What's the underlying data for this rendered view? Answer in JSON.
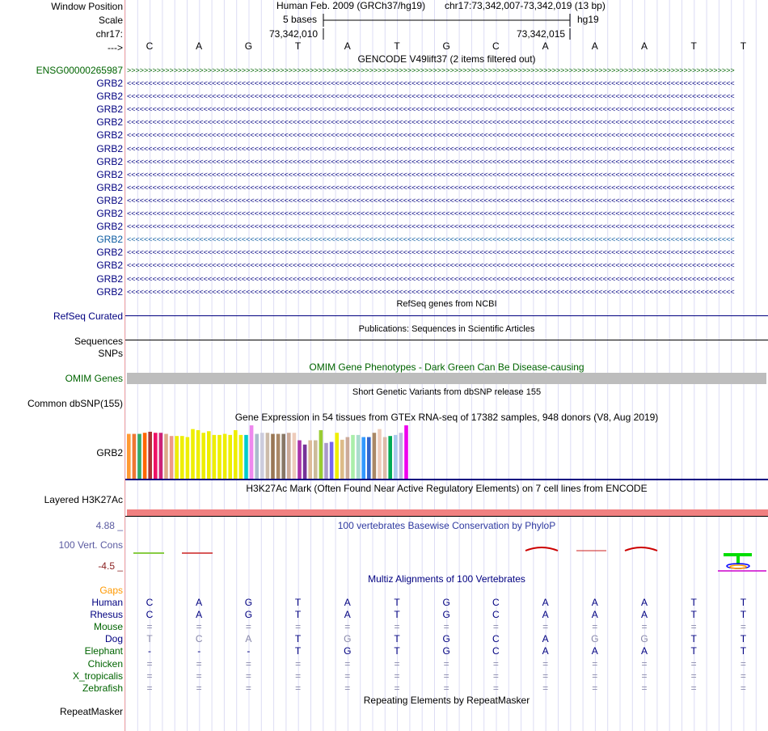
{
  "header": {
    "window_position_label": "Window Position",
    "scale_label": "Scale",
    "chrom_label": "chr17:",
    "strand_label": "--->",
    "title_left": "Human Feb. 2009 (GRCh37/hg19)",
    "title_right": "chr17:73,342,007-73,342,019 (13 bp)",
    "scale_text": "5 bases",
    "assembly": "hg19",
    "coord_left": "73,342,010",
    "coord_right": "73,342,015"
  },
  "bases": [
    "C",
    "A",
    "G",
    "T",
    "A",
    "T",
    "G",
    "C",
    "A",
    "A",
    "A",
    "T",
    "T"
  ],
  "gencode": {
    "title": "GENCODE V49lift37 (2 items filtered out)",
    "first_item": "ENSG00000265987",
    "items": [
      "GRB2",
      "GRB2",
      "GRB2",
      "GRB2",
      "GRB2",
      "GRB2",
      "GRB2",
      "GRB2",
      "GRB2",
      "GRB2",
      "GRB2",
      "GRB2",
      "GRB2",
      "GRB2",
      "GRB2",
      "GRB2",
      "GRB2"
    ],
    "highlighted_index": 12,
    "forward_arrows": ">>>>>>>>>>>>>>>>>>>>>>>>>>>>>>>>>>>>>>>>>>>>>>>>>>>>>>>>>>>>>>>>>>>>>>>>>>>>>>>>>>>>>>>>>>>>>>>>>>>>>>>>>>>>>>>>>>>>>>>>>>>>>>>>>>>>>>>>>>>>>>>",
    "reverse_arrows": "<<<<<<<<<<<<<<<<<<<<<<<<<<<<<<<<<<<<<<<<<<<<<<<<<<<<<<<<<<<<<<<<<<<<<<<<<<<<<<<<<<<<<<<<<<<<<<<<<<<<<<<<<<<<<<<<<<<<<<<<<<<<<<<<<<<<<<<<<<<<<<<"
  },
  "refseq": {
    "title": "RefSeq genes from NCBI",
    "label": "RefSeq Curated"
  },
  "publications": {
    "title": "Publications: Sequences in Scientific Articles",
    "label1": "Sequences",
    "label2": "SNPs"
  },
  "omim": {
    "title": "OMIM Gene Phenotypes - Dark Green Can Be Disease-causing",
    "label": "OMIM Genes"
  },
  "dbsnp": {
    "title": "Short Genetic Variants from dbSNP release 155",
    "label": "Common dbSNP(155)"
  },
  "gtex": {
    "title": "Gene Expression in 54 tissues from GTEx RNA-seq of 17382 samples, 948 donors (V8, Aug 2019)",
    "label": "GRB2",
    "bars": [
      {
        "c": "#ff9933",
        "v": 0.84
      },
      {
        "c": "#ee7733",
        "v": 0.84
      },
      {
        "c": "#33aa66",
        "v": 0.84
      },
      {
        "c": "#ff6600",
        "v": 0.86
      },
      {
        "c": "#aa3333",
        "v": 0.88
      },
      {
        "c": "#ee1166",
        "v": 0.86
      },
      {
        "c": "#cc2277",
        "v": 0.86
      },
      {
        "c": "#ddaa88",
        "v": 0.84
      },
      {
        "c": "#ee9988",
        "v": 0.8
      },
      {
        "c": "#eeee00",
        "v": 0.8
      },
      {
        "c": "#eeee00",
        "v": 0.8
      },
      {
        "c": "#eeee00",
        "v": 0.78
      },
      {
        "c": "#eeee00",
        "v": 0.93
      },
      {
        "c": "#eeee00",
        "v": 0.91
      },
      {
        "c": "#eeee00",
        "v": 0.86
      },
      {
        "c": "#eeee00",
        "v": 0.89
      },
      {
        "c": "#eeee00",
        "v": 0.82
      },
      {
        "c": "#eeee00",
        "v": 0.82
      },
      {
        "c": "#eeee00",
        "v": 0.84
      },
      {
        "c": "#eeee00",
        "v": 0.82
      },
      {
        "c": "#eeee00",
        "v": 0.91
      },
      {
        "c": "#eeee00",
        "v": 0.82
      },
      {
        "c": "#00cccc",
        "v": 0.82
      },
      {
        "c": "#ee88ee",
        "v": 1.0
      },
      {
        "c": "#aabbcc",
        "v": 0.84
      },
      {
        "c": "#ccccdd",
        "v": 0.86
      },
      {
        "c": "#ccbbaa",
        "v": 0.86
      },
      {
        "c": "#997755",
        "v": 0.84
      },
      {
        "c": "#aa8866",
        "v": 0.84
      },
      {
        "c": "#887766",
        "v": 0.84
      },
      {
        "c": "#ccaa99",
        "v": 0.86
      },
      {
        "c": "#eeccbb",
        "v": 0.86
      },
      {
        "c": "#aa33aa",
        "v": 0.72
      },
      {
        "c": "#773399",
        "v": 0.64
      },
      {
        "c": "#ddbb99",
        "v": 0.72
      },
      {
        "c": "#ccbb99",
        "v": 0.72
      },
      {
        "c": "#99cc33",
        "v": 0.91
      },
      {
        "c": "#aa99cc",
        "v": 0.67
      },
      {
        "c": "#7766ee",
        "v": 0.69
      },
      {
        "c": "#eeee00",
        "v": 0.86
      },
      {
        "c": "#ddbb88",
        "v": 0.73
      },
      {
        "c": "#ccaa99",
        "v": 0.78
      },
      {
        "c": "#aaeeaa",
        "v": 0.82
      },
      {
        "c": "#aaddcc",
        "v": 0.82
      },
      {
        "c": "#3399ff",
        "v": 0.78
      },
      {
        "c": "#3366cc",
        "v": 0.78
      },
      {
        "c": "#aa8866",
        "v": 0.86
      },
      {
        "c": "#eeccbb",
        "v": 0.93
      },
      {
        "c": "#ddbbaa",
        "v": 0.78
      },
      {
        "c": "#00aa55",
        "v": 0.8
      },
      {
        "c": "#aaccee",
        "v": 0.82
      },
      {
        "c": "#bbbbdd",
        "v": 0.86
      },
      {
        "c": "#ee00ee",
        "v": 1.0
      }
    ]
  },
  "h3k27ac": {
    "title": "H3K27Ac Mark (Often Found Near Active Regulatory Elements) on 7 cell lines from ENCODE",
    "label": "Layered H3K27Ac"
  },
  "phylop": {
    "title": "100 vertebrates Basewise Conservation by PhyloP",
    "label": "100 Vert. Cons",
    "max": "4.88 _",
    "min": "-4.5 _"
  },
  "multiz": {
    "title": "Multiz Alignments of 100 Vertebrates",
    "gaps_label": "Gaps",
    "species": [
      {
        "name": "Human",
        "color": "#000080",
        "seq": [
          "C",
          "A",
          "G",
          "T",
          "A",
          "T",
          "G",
          "C",
          "A",
          "A",
          "A",
          "T",
          "T"
        ],
        "base": "#000080"
      },
      {
        "name": "Rhesus",
        "color": "#000080",
        "seq": [
          "C",
          "A",
          "G",
          "T",
          "A",
          "T",
          "G",
          "C",
          "A",
          "A",
          "A",
          "T",
          "T"
        ],
        "base": "#000080"
      },
      {
        "name": "Mouse",
        "color": "#006400",
        "seq": [
          "=",
          "=",
          "=",
          "=",
          "=",
          "=",
          "=",
          "=",
          "=",
          "=",
          "=",
          "=",
          "="
        ],
        "base": "#8888aa"
      },
      {
        "name": "Dog",
        "color": "#000080",
        "seq": [
          "T",
          "C",
          "A",
          "T",
          "G",
          "T",
          "G",
          "C",
          "A",
          "G",
          "G",
          "T",
          "T"
        ],
        "base": "#000080"
      },
      {
        "name": "Elephant",
        "color": "#006400",
        "seq": [
          "-",
          "-",
          "-",
          "T",
          "G",
          "T",
          "G",
          "C",
          "A",
          "A",
          "A",
          "T",
          "T"
        ],
        "base": "#000080"
      },
      {
        "name": "Chicken",
        "color": "#006400",
        "seq": [
          "=",
          "=",
          "=",
          "=",
          "=",
          "=",
          "=",
          "=",
          "=",
          "=",
          "=",
          "=",
          "="
        ],
        "base": "#8888aa"
      },
      {
        "name": "X_tropicalis",
        "color": "#006400",
        "seq": [
          "=",
          "=",
          "=",
          "=",
          "=",
          "=",
          "=",
          "=",
          "=",
          "=",
          "=",
          "=",
          "="
        ],
        "base": "#8888aa"
      },
      {
        "name": "Zebrafish",
        "color": "#006400",
        "seq": [
          "=",
          "=",
          "=",
          "=",
          "=",
          "=",
          "=",
          "=",
          "=",
          "=",
          "=",
          "=",
          "="
        ],
        "base": "#8888aa"
      }
    ],
    "dim_bases": {
      "Dog": [
        0,
        1,
        2,
        4,
        9,
        10
      ]
    }
  },
  "repeatmasker": {
    "title": "Repeating Elements by RepeatMasker",
    "label": "RepeatMasker"
  }
}
